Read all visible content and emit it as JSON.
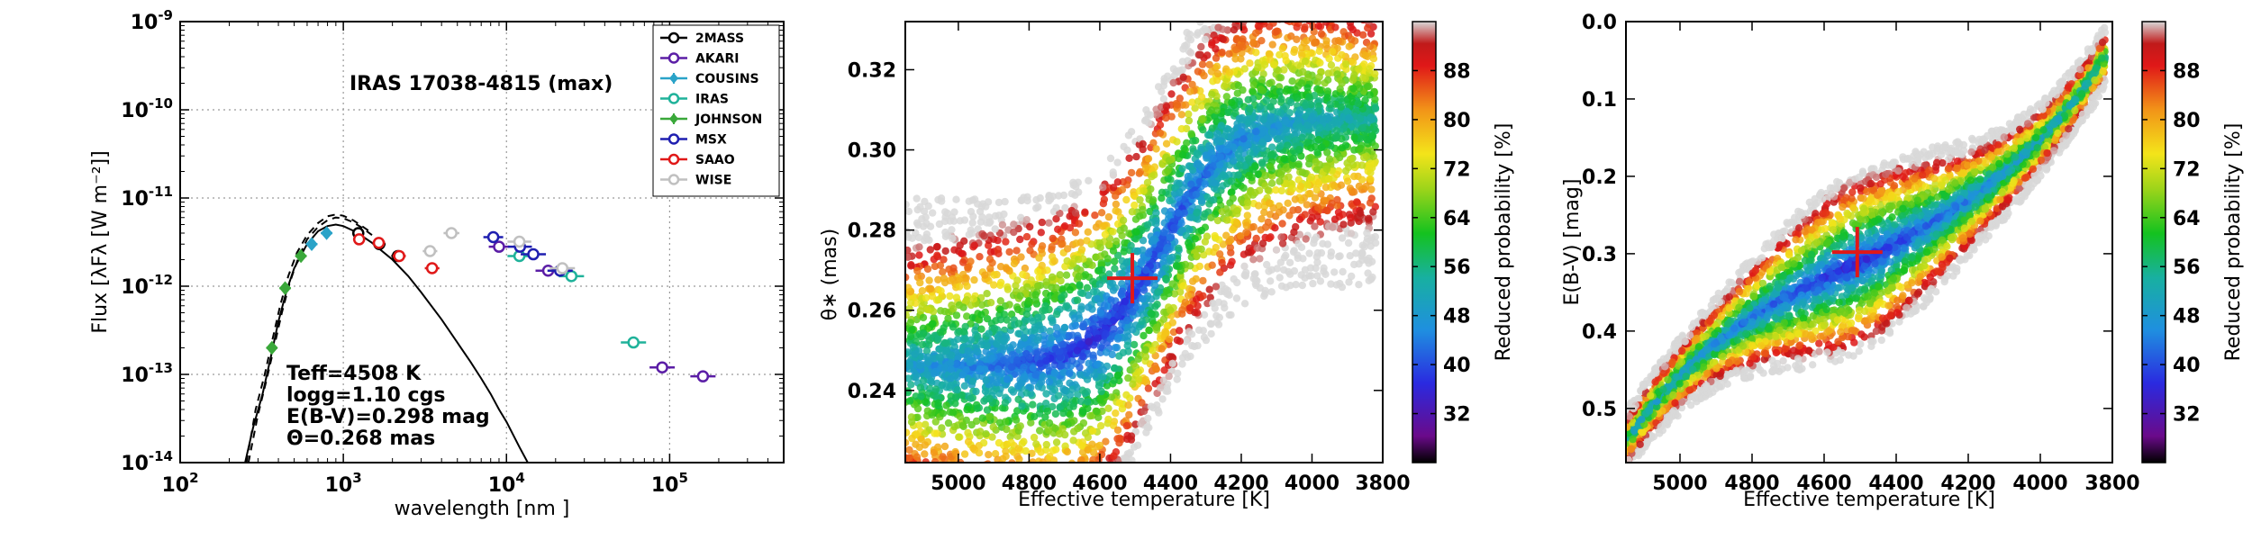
{
  "colors": {
    "2MASS": "#000000",
    "AKARI": "#5b1ea6",
    "COUSINS": "#2aa3c8",
    "IRAS": "#1fb29a",
    "JOHNSON": "#3aa83a",
    "MSX": "#1f1fb0",
    "SAAO": "#e01818",
    "WISE": "#c0c0c0"
  },
  "chart_data": [
    {
      "type": "scatter",
      "title": "IRAS 17038-4815 (max)",
      "xlabel": "wavelength [nm ]",
      "ylabel": "Flux [λFλ [W  m⁻²]]",
      "xscale": "log",
      "yscale": "log",
      "xlim": [
        100,
        500000
      ],
      "ylim": [
        1e-14,
        1e-09
      ],
      "xticks": [
        {
          "v": 100,
          "b": "10",
          "e": "2"
        },
        {
          "v": 1000,
          "b": "10",
          "e": "3"
        },
        {
          "v": 10000,
          "b": "10",
          "e": "4"
        },
        {
          "v": 100000,
          "b": "10",
          "e": "5"
        }
      ],
      "yticks": [
        {
          "v": 1e-14,
          "b": "10",
          "e": "-14"
        },
        {
          "v": 1e-13,
          "b": "10",
          "e": "-13"
        },
        {
          "v": 1e-12,
          "b": "10",
          "e": "-12"
        },
        {
          "v": 1e-11,
          "b": "10",
          "e": "-11"
        },
        {
          "v": 1e-10,
          "b": "10",
          "e": "-10"
        },
        {
          "v": 1e-09,
          "b": "10",
          "e": "-9"
        }
      ],
      "grid": true,
      "legend_position": "top-right",
      "series": [
        {
          "name": "2MASS",
          "marker": "circle",
          "points": [
            [
              1235,
              4e-12
            ],
            [
              1662,
              3e-12
            ],
            [
              2159,
              2.2e-12
            ]
          ]
        },
        {
          "name": "AKARI",
          "marker": "circle",
          "points": [
            [
              9000,
              2.8e-12
            ],
            [
              18000,
              1.5e-12
            ],
            [
              90000,
              1.2e-13
            ],
            [
              160000,
              9.5e-14
            ]
          ]
        },
        {
          "name": "COUSINS",
          "marker": "diamond",
          "points": [
            [
              640,
              3e-12
            ],
            [
              790,
              4e-12
            ]
          ]
        },
        {
          "name": "IRAS",
          "marker": "circle",
          "points": [
            [
              12000,
              2.2e-12
            ],
            [
              25000,
              1.3e-12
            ],
            [
              60000,
              2.3e-13
            ]
          ]
        },
        {
          "name": "JOHNSON",
          "marker": "diamond",
          "points": [
            [
              365,
              2e-13
            ],
            [
              440,
              9.5e-13
            ],
            [
              550,
              2.2e-12
            ]
          ]
        },
        {
          "name": "MSX",
          "marker": "circle",
          "points": [
            [
              8300,
              3.6e-12
            ],
            [
              12100,
              2.8e-12
            ],
            [
              14600,
              2.3e-12
            ],
            [
              21300,
              1.5e-12
            ]
          ]
        },
        {
          "name": "SAAO",
          "marker": "circle",
          "points": [
            [
              1250,
              3.4e-12
            ],
            [
              1650,
              3.1e-12
            ],
            [
              2200,
              2.2e-12
            ],
            [
              3500,
              1.6e-12
            ]
          ]
        },
        {
          "name": "WISE",
          "marker": "circle",
          "points": [
            [
              3400,
              2.5e-12
            ],
            [
              4600,
              4e-12
            ],
            [
              12000,
              3.2e-12
            ],
            [
              22000,
              1.6e-12
            ]
          ]
        }
      ],
      "model_solid": [
        [
          250,
          1e-14
        ],
        [
          280,
          2.5e-14
        ],
        [
          320,
          6e-14
        ],
        [
          360,
          1.6e-13
        ],
        [
          400,
          4e-13
        ],
        [
          450,
          9e-13
        ],
        [
          500,
          1.6e-12
        ],
        [
          600,
          3e-12
        ],
        [
          700,
          4.2e-12
        ],
        [
          800,
          4.8e-12
        ],
        [
          900,
          5e-12
        ],
        [
          1000,
          4.8e-12
        ],
        [
          1200,
          4.1e-12
        ],
        [
          1500,
          3.1e-12
        ],
        [
          2000,
          2e-12
        ],
        [
          2500,
          1.3e-12
        ],
        [
          3000,
          8.5e-13
        ],
        [
          4000,
          4.2e-13
        ],
        [
          5000,
          2.3e-13
        ],
        [
          6000,
          1.4e-13
        ],
        [
          7000,
          9e-14
        ],
        [
          8000,
          6e-14
        ],
        [
          9000,
          4e-14
        ],
        [
          10000,
          2.9e-14
        ],
        [
          12000,
          1.5e-14
        ],
        [
          13500,
          1e-14
        ]
      ],
      "model_dashed_1": [
        [
          255,
          1e-14
        ],
        [
          290,
          4e-14
        ],
        [
          330,
          1e-13
        ],
        [
          370,
          2.6e-13
        ],
        [
          410,
          6e-13
        ],
        [
          460,
          1.3e-12
        ],
        [
          520,
          2.4e-12
        ],
        [
          600,
          3.8e-12
        ],
        [
          700,
          5.2e-12
        ],
        [
          800,
          6.2e-12
        ],
        [
          900,
          6.5e-12
        ],
        [
          1000,
          6.3e-12
        ],
        [
          1150,
          5.6e-12
        ],
        [
          1300,
          4.8e-12
        ],
        [
          1500,
          4e-12
        ]
      ],
      "model_dashed_2": [
        [
          262,
          1e-14
        ],
        [
          300,
          3.5e-14
        ],
        [
          340,
          9e-14
        ],
        [
          380,
          2.2e-13
        ],
        [
          420,
          5e-13
        ],
        [
          470,
          1.1e-12
        ],
        [
          530,
          2.1e-12
        ],
        [
          600,
          3.4e-12
        ],
        [
          700,
          4.7e-12
        ],
        [
          800,
          5.6e-12
        ],
        [
          900,
          6e-12
        ],
        [
          1000,
          5.9e-12
        ],
        [
          1150,
          5.3e-12
        ],
        [
          1300,
          4.6e-12
        ],
        [
          1500,
          3.8e-12
        ]
      ],
      "annotations": [
        "Teff=4508 K",
        "logg=1.10 cgs",
        "E(B-V)=0.298 mag",
        "Θ=0.268 mas"
      ]
    },
    {
      "type": "scatter",
      "xlabel": "Effective temperature [K]",
      "ylabel": "θ∗ (mas)",
      "xlim": [
        5150,
        3800
      ],
      "ylim": [
        0.222,
        0.332
      ],
      "xticks": [
        5000,
        4800,
        4600,
        4400,
        4200,
        4000,
        3800
      ],
      "yticks": [
        0.24,
        0.26,
        0.28,
        0.3,
        0.32
      ],
      "best_fit": [
        4508,
        0.268
      ],
      "colorbar": {
        "label": "Reduced probability [%]",
        "min": 24,
        "max": 96,
        "ticks": [
          32,
          40,
          48,
          56,
          64,
          72,
          80,
          88
        ]
      }
    },
    {
      "type": "scatter",
      "xlabel": "Effective temperature [K]",
      "ylabel": "E(B-V) [mag]",
      "xlim": [
        5150,
        3800
      ],
      "ylim": [
        0.57,
        0.0
      ],
      "xticks": [
        5000,
        4800,
        4600,
        4400,
        4200,
        4000,
        3800
      ],
      "yticks": [
        0.0,
        0.1,
        0.2,
        0.3,
        0.4,
        0.5
      ],
      "best_fit": [
        4508,
        0.298
      ],
      "colorbar": {
        "label": "Reduced probability [%]",
        "min": 24,
        "max": 96,
        "ticks": [
          32,
          40,
          48,
          56,
          64,
          72,
          80,
          88
        ]
      }
    }
  ]
}
